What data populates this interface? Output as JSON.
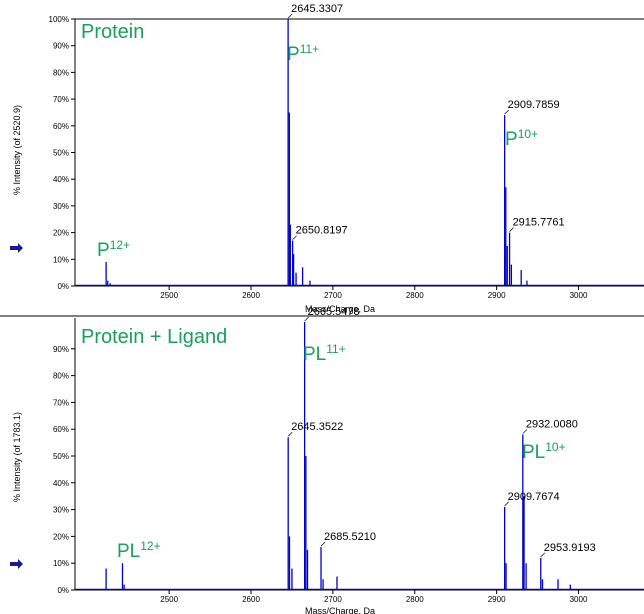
{
  "chart_data": [
    {
      "type": "line",
      "title": "Protein",
      "xlabel": "Mass/Charge, Da",
      "ylabel": "% Intensity (of 2520.9)",
      "xlim": [
        2385,
        3080
      ],
      "ylim": [
        0,
        100
      ],
      "xticks": [
        "2500",
        "2600",
        "2700",
        "2800",
        "2900",
        "3000"
      ],
      "yticks": [
        "0%",
        "10%",
        "20%",
        "30%",
        "40%",
        "50%",
        "60%",
        "70%",
        "80%",
        "90%",
        "100%"
      ],
      "series_color": "#0000cc",
      "peaks": [
        {
          "mz": 2423,
          "intensity": 9
        },
        {
          "mz": 2425,
          "intensity": 2
        },
        {
          "mz": 2428,
          "intensity": 1
        },
        {
          "mz": 2645.3,
          "intensity": 100
        },
        {
          "mz": 2646.8,
          "intensity": 65
        },
        {
          "mz": 2648,
          "intensity": 23
        },
        {
          "mz": 2650.8,
          "intensity": 17
        },
        {
          "mz": 2652,
          "intensity": 12
        },
        {
          "mz": 2655,
          "intensity": 5
        },
        {
          "mz": 2663,
          "intensity": 7
        },
        {
          "mz": 2672,
          "intensity": 2
        },
        {
          "mz": 2909.8,
          "intensity": 64
        },
        {
          "mz": 2911.2,
          "intensity": 37
        },
        {
          "mz": 2913,
          "intensity": 15
        },
        {
          "mz": 2915.8,
          "intensity": 20
        },
        {
          "mz": 2918,
          "intensity": 8
        },
        {
          "mz": 2930,
          "intensity": 6
        },
        {
          "mz": 2937,
          "intensity": 2
        }
      ],
      "peak_labels": [
        {
          "mz": 2645.3,
          "intensity": 100,
          "text": "2645.3307"
        },
        {
          "mz": 2650.8,
          "intensity": 17,
          "text": "2650.8197"
        },
        {
          "mz": 2909.8,
          "intensity": 64,
          "text": "2909.7859"
        },
        {
          "mz": 2915.8,
          "intensity": 20,
          "text": "2915.7761"
        }
      ],
      "annotations": [
        {
          "base": "P",
          "sup": "11+"
        },
        {
          "base": "P",
          "sup": "10+"
        },
        {
          "base": "P",
          "sup": "12+"
        }
      ]
    },
    {
      "type": "line",
      "title": "Protein + Ligand",
      "xlabel": "Mass/Charge, Da",
      "ylabel": "% Intensity (of 1783.1)",
      "xlim": [
        2385,
        3080
      ],
      "ylim": [
        0,
        100
      ],
      "xticks": [
        "2500",
        "2600",
        "2700",
        "2800",
        "2900",
        "3000"
      ],
      "yticks": [
        "0%",
        "10%",
        "20%",
        "30%",
        "40%",
        "50%",
        "60%",
        "70%",
        "80%",
        "90%"
      ],
      "series_color": "#0000cc",
      "peaks": [
        {
          "mz": 2423,
          "intensity": 8
        },
        {
          "mz": 2443,
          "intensity": 10
        },
        {
          "mz": 2445,
          "intensity": 2
        },
        {
          "mz": 2645.4,
          "intensity": 57
        },
        {
          "mz": 2647,
          "intensity": 20
        },
        {
          "mz": 2650,
          "intensity": 8
        },
        {
          "mz": 2665.5,
          "intensity": 100
        },
        {
          "mz": 2667,
          "intensity": 50
        },
        {
          "mz": 2669,
          "intensity": 15
        },
        {
          "mz": 2685.5,
          "intensity": 16
        },
        {
          "mz": 2688,
          "intensity": 4
        },
        {
          "mz": 2705,
          "intensity": 5
        },
        {
          "mz": 2909.8,
          "intensity": 31
        },
        {
          "mz": 2911.5,
          "intensity": 10
        },
        {
          "mz": 2932.0,
          "intensity": 58
        },
        {
          "mz": 2933.5,
          "intensity": 35
        },
        {
          "mz": 2936,
          "intensity": 10
        },
        {
          "mz": 2953.9,
          "intensity": 12
        },
        {
          "mz": 2956,
          "intensity": 4
        },
        {
          "mz": 2975,
          "intensity": 4
        },
        {
          "mz": 2990,
          "intensity": 2
        }
      ],
      "peak_labels": [
        {
          "mz": 2665.5,
          "intensity": 100,
          "text": "2665.5478"
        },
        {
          "mz": 2645.4,
          "intensity": 57,
          "text": "2645.3522"
        },
        {
          "mz": 2685.5,
          "intensity": 16,
          "text": "2685.5210"
        },
        {
          "mz": 2909.8,
          "intensity": 31,
          "text": "2909.7674"
        },
        {
          "mz": 2932.0,
          "intensity": 58,
          "text": "2932.0080"
        },
        {
          "mz": 2953.9,
          "intensity": 12,
          "text": "2953.9193"
        }
      ],
      "annotations": [
        {
          "base": "PL",
          "sup": "11+"
        },
        {
          "base": "PL",
          "sup": "10+"
        },
        {
          "base": "PL",
          "sup": "12+"
        }
      ]
    }
  ]
}
